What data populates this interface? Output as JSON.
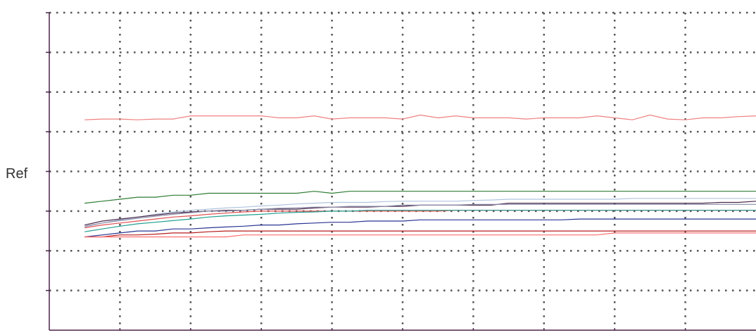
{
  "chart_data": {
    "type": "line",
    "title": "",
    "xlabel": "",
    "ylabel": "Ref",
    "xlim": [
      0,
      10
    ],
    "ylim": [
      0,
      8
    ],
    "grid": true,
    "x": [
      0.5,
      0.75,
      1,
      1.25,
      1.5,
      1.75,
      2,
      2.25,
      2.5,
      2.75,
      3,
      3.25,
      3.5,
      3.75,
      4,
      4.25,
      4.5,
      4.75,
      5,
      5.25,
      5.5,
      5.75,
      6,
      6.25,
      6.5,
      6.75,
      7,
      7.25,
      7.5,
      7.75,
      8,
      8.25,
      8.5,
      8.75,
      9,
      9.25,
      9.5,
      9.75,
      10
    ],
    "series": [
      {
        "color": "#f08080",
        "values": [
          5.3,
          5.32,
          5.32,
          5.3,
          5.32,
          5.32,
          5.4,
          5.4,
          5.4,
          5.4,
          5.4,
          5.35,
          5.35,
          5.4,
          5.32,
          5.35,
          5.35,
          5.35,
          5.32,
          5.42,
          5.35,
          5.4,
          5.35,
          5.35,
          5.35,
          5.32,
          5.35,
          5.35,
          5.35,
          5.4,
          5.35,
          5.3,
          5.42,
          5.32,
          5.3,
          5.35,
          5.35,
          5.38,
          5.4
        ]
      },
      {
        "color": "#2e7d32",
        "values": [
          3.2,
          3.25,
          3.3,
          3.35,
          3.35,
          3.4,
          3.4,
          3.45,
          3.45,
          3.45,
          3.45,
          3.45,
          3.45,
          3.5,
          3.45,
          3.5,
          3.5,
          3.5,
          3.5,
          3.5,
          3.5,
          3.5,
          3.5,
          3.5,
          3.5,
          3.5,
          3.5,
          3.5,
          3.5,
          3.5,
          3.5,
          3.5,
          3.5,
          3.5,
          3.5,
          3.5,
          3.5,
          3.5,
          3.5
        ]
      },
      {
        "color": "#b0c4de",
        "values": [
          2.6,
          2.7,
          2.78,
          2.85,
          2.92,
          2.98,
          3.02,
          3.05,
          3.08,
          3.1,
          3.13,
          3.15,
          3.18,
          3.2,
          3.22,
          3.22,
          3.22,
          3.24,
          3.25,
          3.25,
          3.25,
          3.25,
          3.27,
          3.28,
          3.3,
          3.3,
          3.3,
          3.3,
          3.3,
          3.3,
          3.3,
          3.32,
          3.32,
          3.32,
          3.32,
          3.32,
          3.32,
          3.32,
          3.32
        ]
      },
      {
        "color": "#4b2a4a",
        "values": [
          2.65,
          2.75,
          2.8,
          2.85,
          2.9,
          2.95,
          2.98,
          3.0,
          3.02,
          3.02,
          3.05,
          3.05,
          3.05,
          3.08,
          3.1,
          3.1,
          3.1,
          3.12,
          3.12,
          3.15,
          3.15,
          3.15,
          3.15,
          3.15,
          3.2,
          3.2,
          3.2,
          3.2,
          3.2,
          3.2,
          3.2,
          3.2,
          3.2,
          3.2,
          3.2,
          3.2,
          3.22,
          3.22,
          3.25
        ]
      },
      {
        "color": "#8a8aa8",
        "values": [
          2.62,
          2.7,
          2.76,
          2.82,
          2.87,
          2.92,
          2.96,
          3.0,
          3.0,
          3.02,
          3.05,
          3.07,
          3.08,
          3.1,
          3.1,
          3.12,
          3.12,
          3.12,
          3.15,
          3.15,
          3.15,
          3.15,
          3.17,
          3.17,
          3.17,
          3.17,
          3.17,
          3.17,
          3.17,
          3.17,
          3.17,
          3.17,
          3.17,
          3.17,
          3.17,
          3.17,
          3.17,
          3.17,
          3.17
        ]
      },
      {
        "color": "#e05050",
        "values": [
          2.58,
          2.65,
          2.7,
          2.75,
          2.8,
          2.85,
          2.88,
          2.92,
          2.95,
          2.98,
          3.0,
          3.0,
          3.0,
          3.0,
          3.0,
          3.0,
          3.0,
          3.0,
          3.0,
          3.0,
          3.0,
          3.02,
          3.02,
          3.02,
          3.02,
          3.02,
          3.02,
          3.02,
          3.02,
          3.02,
          3.02,
          3.02,
          3.02,
          3.02,
          3.02,
          3.02,
          3.02,
          3.02,
          3.02
        ]
      },
      {
        "color": "#20a090",
        "values": [
          2.48,
          2.55,
          2.62,
          2.68,
          2.72,
          2.76,
          2.8,
          2.85,
          2.88,
          2.9,
          2.92,
          2.95,
          2.97,
          2.98,
          3.0,
          3.0,
          3.02,
          3.02,
          3.02,
          3.02,
          3.02,
          3.02,
          3.02,
          3.02,
          3.02,
          3.02,
          3.02,
          3.02,
          3.02,
          3.02,
          3.02,
          3.02,
          3.02,
          3.02,
          3.02,
          3.02,
          3.02,
          3.02,
          3.02
        ]
      },
      {
        "color": "#283593",
        "values": [
          2.35,
          2.4,
          2.45,
          2.5,
          2.5,
          2.55,
          2.55,
          2.58,
          2.6,
          2.62,
          2.65,
          2.65,
          2.68,
          2.7,
          2.72,
          2.72,
          2.75,
          2.75,
          2.75,
          2.78,
          2.78,
          2.78,
          2.78,
          2.78,
          2.78,
          2.78,
          2.78,
          2.78,
          2.8,
          2.8,
          2.8,
          2.8,
          2.8,
          2.8,
          2.8,
          2.8,
          2.8,
          2.8,
          2.8
        ]
      },
      {
        "color": "#b71c1c",
        "values": [
          2.35,
          2.35,
          2.4,
          2.4,
          2.42,
          2.45,
          2.45,
          2.48,
          2.5,
          2.5,
          2.5,
          2.5,
          2.5,
          2.5,
          2.5,
          2.5,
          2.5,
          2.5,
          2.5,
          2.5,
          2.5,
          2.5,
          2.5,
          2.5,
          2.5,
          2.5,
          2.5,
          2.5,
          2.5,
          2.5,
          2.5,
          2.5,
          2.5,
          2.5,
          2.5,
          2.5,
          2.5,
          2.5,
          2.5
        ]
      },
      {
        "color": "#ff6f6f",
        "values": [
          2.35,
          2.35,
          2.35,
          2.35,
          2.35,
          2.35,
          2.35,
          2.35,
          2.35,
          2.4,
          2.4,
          2.4,
          2.4,
          2.4,
          2.4,
          2.4,
          2.4,
          2.4,
          2.4,
          2.4,
          2.4,
          2.4,
          2.4,
          2.4,
          2.4,
          2.4,
          2.4,
          2.4,
          2.4,
          2.4,
          2.45,
          2.45,
          2.45,
          2.45,
          2.45,
          2.45,
          2.45,
          2.45,
          2.45
        ]
      }
    ]
  }
}
